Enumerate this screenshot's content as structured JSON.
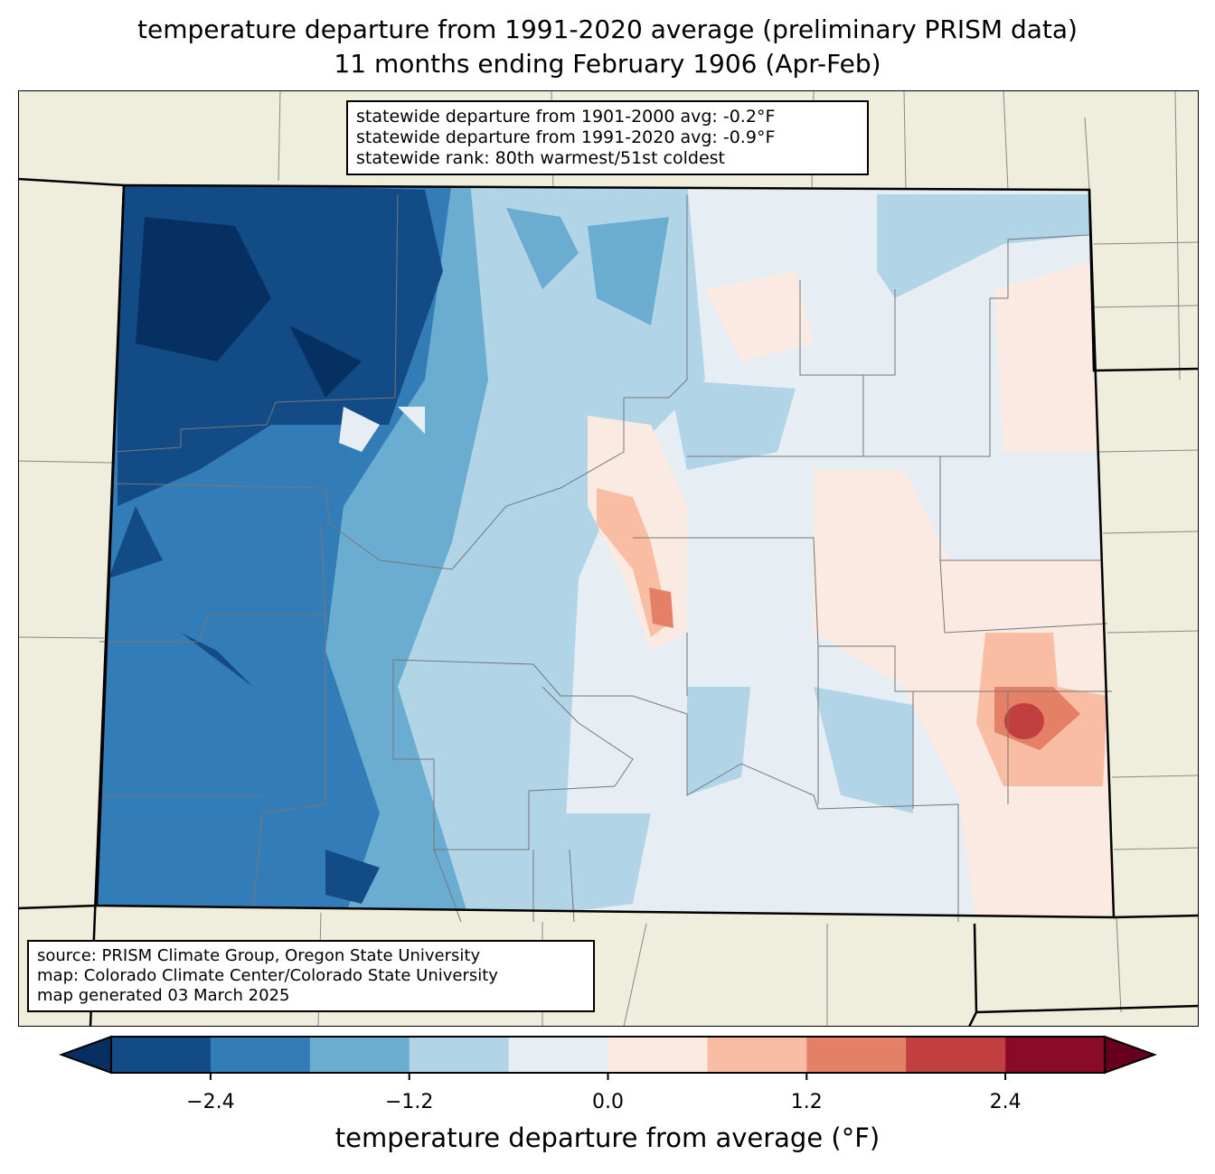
{
  "title": {
    "line1": "temperature departure from 1991-2020 average (preliminary PRISM data)",
    "line2": "11 months ending February 1906 (Apr-Feb)"
  },
  "stats": {
    "line1": "statewide departure from 1901-2000 avg: -0.2°F",
    "line2": "statewide departure from 1991-2020 avg: -0.9°F",
    "line3": "statewide rank: 80th warmest/51st coldest"
  },
  "source": {
    "line1": "source: PRISM Climate Group, Oregon State University",
    "line2": "map: Colorado Climate Center/Colorado State University",
    "line3": "map generated 03 March 2025"
  },
  "chart_data": {
    "type": "heatmap",
    "title": "temperature departure from 1991-2020 average (preliminary PRISM data)",
    "region": "Colorado",
    "colorbar": {
      "label": "temperature departure from average (°F)",
      "levels": [
        -3.0,
        -2.4,
        -1.8,
        -1.2,
        -0.6,
        0.0,
        0.6,
        1.2,
        1.8,
        2.4,
        3.0
      ],
      "ticks": [
        "−2.4",
        "−1.2",
        "0.0",
        "1.2",
        "2.4"
      ],
      "tick_values": [
        -2.4,
        -1.2,
        0.0,
        1.2,
        2.4
      ],
      "colors": [
        "#134b87",
        "#327cb7",
        "#6bacd1",
        "#b1d4e7",
        "#e6eef4",
        "#faeae1",
        "#f9bda3",
        "#e48066",
        "#c23f3f",
        "#8a0b25"
      ],
      "extend_low_color": "#053061",
      "extend_high_color": "#67001f"
    }
  }
}
